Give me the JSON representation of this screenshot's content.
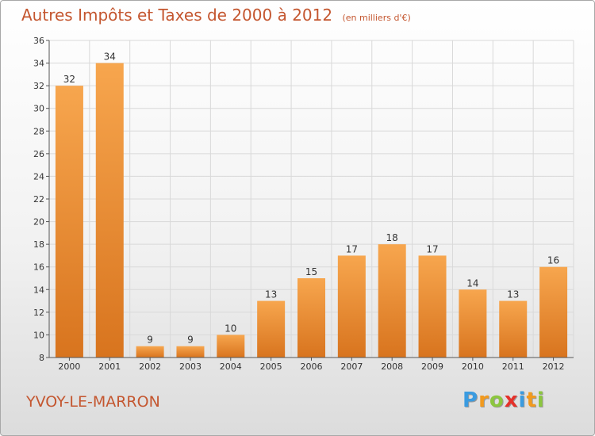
{
  "header": {
    "title": "Autres Impôts et Taxes de 2000 à 2012",
    "unit": "(en milliers d'€)"
  },
  "footer": {
    "commune": "YVOY-LE-MARRON",
    "logo_letters": [
      "P",
      "r",
      "o",
      "x",
      "i",
      "t",
      "i"
    ],
    "logo_colors": [
      "#3a9be0",
      "#f29a1e",
      "#8cc63f",
      "#e5312a",
      "#3a9be0",
      "#f29a1e",
      "#8cc63f"
    ]
  },
  "colors": {
    "bar_light": "#f7a64e",
    "bar_dark": "#d8741e",
    "text_accent": "#c4562f",
    "grid": "#d9d9d9"
  },
  "chart_data": {
    "type": "bar",
    "title": "Autres Impôts et Taxes de 2000 à 2012",
    "subtitle": "(en milliers d'€)",
    "xlabel": "",
    "ylabel": "",
    "categories": [
      "2000",
      "2001",
      "2002",
      "2003",
      "2004",
      "2005",
      "2006",
      "2007",
      "2008",
      "2009",
      "2010",
      "2011",
      "2012"
    ],
    "values": [
      32,
      34,
      9,
      9,
      10,
      13,
      15,
      17,
      18,
      17,
      14,
      13,
      16
    ],
    "ylim": [
      8,
      36
    ],
    "yticks": [
      8,
      10,
      12,
      14,
      16,
      18,
      20,
      22,
      24,
      26,
      28,
      30,
      32,
      34,
      36
    ],
    "grid": true,
    "legend": "none"
  }
}
